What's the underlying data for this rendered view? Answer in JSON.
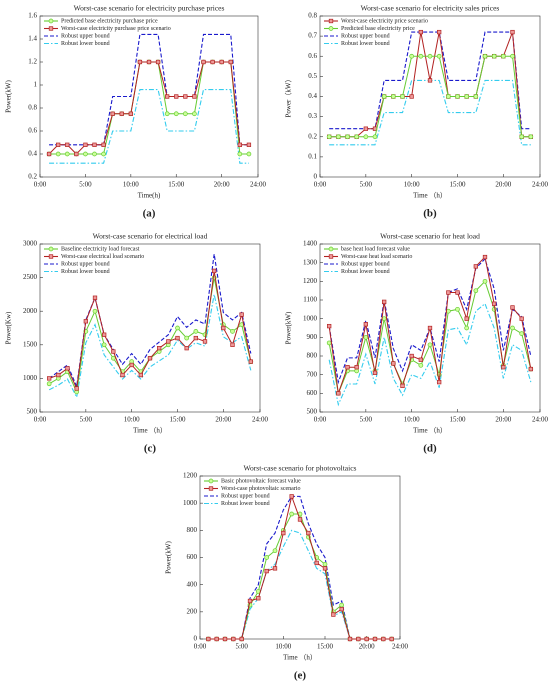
{
  "chart_data": [
    {
      "type": "line",
      "title": "Worst-case scenario for electricity purchase prices",
      "panel_label": "(a)",
      "x_label": "Time(h)",
      "y_label": "Power(kW)",
      "legend": "upper left",
      "grid": false,
      "x": [
        1,
        2,
        3,
        4,
        5,
        6,
        7,
        8,
        9,
        10,
        11,
        12,
        13,
        14,
        15,
        16,
        17,
        18,
        19,
        20,
        21,
        22,
        23
      ],
      "xlim": [
        0,
        24
      ],
      "xticks": [
        {
          "value": 0,
          "label": "0:00"
        },
        {
          "value": 5,
          "label": "5:00"
        },
        {
          "value": 10,
          "label": "10:00"
        },
        {
          "value": 15,
          "label": "15:00"
        },
        {
          "value": 20,
          "label": "20:00"
        },
        {
          "value": 24,
          "label": "24:00"
        }
      ],
      "ylim": [
        0.2,
        1.6
      ],
      "yticks": [
        0.2,
        0.4,
        0.6,
        0.8,
        1,
        1.2,
        1.4,
        1.6
      ],
      "series": [
        {
          "name": "Predicted base electricity purchase price",
          "color": "#66cc33",
          "style": "solid",
          "marker": "circle",
          "values": [
            0.4,
            0.4,
            0.4,
            0.4,
            0.4,
            0.4,
            0.4,
            0.75,
            0.75,
            0.75,
            1.2,
            1.2,
            1.2,
            0.75,
            0.75,
            0.75,
            0.75,
            1.2,
            1.2,
            1.2,
            1.2,
            0.4,
            0.4
          ]
        },
        {
          "name": "Worst-case electricity purchase price scenario",
          "color": "#b22222",
          "style": "solid",
          "marker": "square",
          "values": [
            0.4,
            0.48,
            0.48,
            0.4,
            0.48,
            0.48,
            0.48,
            0.75,
            0.75,
            0.75,
            1.2,
            1.2,
            1.2,
            0.9,
            0.9,
            0.9,
            0.9,
            1.2,
            1.2,
            1.2,
            1.2,
            0.48,
            0.48
          ]
        },
        {
          "name": "Robust upper bound",
          "color": "#1a1acc",
          "style": "dashed",
          "marker": "none",
          "values": [
            0.48,
            0.48,
            0.48,
            0.48,
            0.48,
            0.48,
            0.48,
            0.9,
            0.9,
            0.9,
            1.44,
            1.44,
            1.44,
            0.9,
            0.9,
            0.9,
            0.9,
            1.44,
            1.44,
            1.44,
            1.44,
            0.48,
            0.48
          ]
        },
        {
          "name": "Robust lower bound",
          "color": "#33ccee",
          "style": "dashdot",
          "marker": "none",
          "values": [
            0.32,
            0.32,
            0.32,
            0.32,
            0.32,
            0.32,
            0.32,
            0.6,
            0.6,
            0.6,
            0.96,
            0.96,
            0.96,
            0.6,
            0.6,
            0.6,
            0.6,
            0.96,
            0.96,
            0.96,
            0.96,
            0.32,
            0.32
          ]
        }
      ]
    },
    {
      "type": "line",
      "title": "Worst-case scenario for electricity sales prices",
      "panel_label": "(b)",
      "x_label": "Time （h）",
      "y_label": "Power（kW）",
      "legend": "upper left",
      "grid": false,
      "x": [
        1,
        2,
        3,
        4,
        5,
        6,
        7,
        8,
        9,
        10,
        11,
        12,
        13,
        14,
        15,
        16,
        17,
        18,
        19,
        20,
        21,
        22,
        23
      ],
      "xlim": [
        0,
        24
      ],
      "xticks": [
        {
          "value": 0,
          "label": "0:00"
        },
        {
          "value": 5,
          "label": "5:00"
        },
        {
          "value": 10,
          "label": "10:00"
        },
        {
          "value": 15,
          "label": "15:00"
        },
        {
          "value": 20,
          "label": "20:00"
        },
        {
          "value": 24,
          "label": "24:00"
        }
      ],
      "ylim": [
        0,
        0.8
      ],
      "yticks": [
        0,
        0.1,
        0.2,
        0.3,
        0.4,
        0.5,
        0.6,
        0.7,
        0.8
      ],
      "series": [
        {
          "name": "Worst-case electricity price scenario",
          "color": "#b22222",
          "style": "solid",
          "marker": "square",
          "values": [
            0.2,
            0.2,
            0.2,
            0.2,
            0.24,
            0.24,
            0.4,
            0.4,
            0.4,
            0.4,
            0.72,
            0.48,
            0.72,
            0.4,
            0.4,
            0.4,
            0.4,
            0.6,
            0.6,
            0.6,
            0.72,
            0.2,
            0.2
          ]
        },
        {
          "name": "Predicted base electricity price",
          "color": "#66cc33",
          "style": "solid",
          "marker": "circle",
          "values": [
            0.2,
            0.2,
            0.2,
            0.2,
            0.2,
            0.2,
            0.4,
            0.4,
            0.4,
            0.6,
            0.6,
            0.6,
            0.6,
            0.4,
            0.4,
            0.4,
            0.4,
            0.6,
            0.6,
            0.6,
            0.6,
            0.2,
            0.2
          ]
        },
        {
          "name": "Robust upper bound",
          "color": "#1a1acc",
          "style": "dashed",
          "marker": "none",
          "values": [
            0.24,
            0.24,
            0.24,
            0.24,
            0.24,
            0.24,
            0.48,
            0.48,
            0.48,
            0.72,
            0.72,
            0.72,
            0.72,
            0.48,
            0.48,
            0.48,
            0.48,
            0.72,
            0.72,
            0.72,
            0.72,
            0.24,
            0.24
          ]
        },
        {
          "name": "Robust lower bound",
          "color": "#33ccee",
          "style": "dashdot",
          "marker": "none",
          "values": [
            0.16,
            0.16,
            0.16,
            0.16,
            0.16,
            0.16,
            0.32,
            0.32,
            0.32,
            0.48,
            0.48,
            0.48,
            0.48,
            0.32,
            0.32,
            0.32,
            0.32,
            0.48,
            0.48,
            0.48,
            0.48,
            0.16,
            0.16
          ]
        }
      ]
    },
    {
      "type": "line",
      "title": "Worst-case scenario for electrical load",
      "panel_label": "(c)",
      "x_label": "Time （h）",
      "y_label": "Power(Kw)",
      "legend": "upper left",
      "grid": false,
      "x": [
        1,
        2,
        3,
        4,
        5,
        6,
        7,
        8,
        9,
        10,
        11,
        12,
        13,
        14,
        15,
        16,
        17,
        18,
        19,
        20,
        21,
        22,
        23
      ],
      "xlim": [
        0,
        24
      ],
      "xticks": [
        {
          "value": 0,
          "label": "0:00"
        },
        {
          "value": 5,
          "label": "5:00"
        },
        {
          "value": 10,
          "label": "10:00"
        },
        {
          "value": 15,
          "label": "15:00"
        },
        {
          "value": 20,
          "label": "20:00"
        },
        {
          "value": 24,
          "label": "24:00"
        }
      ],
      "ylim": [
        500,
        3000
      ],
      "yticks": [
        500,
        1000,
        1500,
        2000,
        2500,
        3000
      ],
      "series": [
        {
          "name": "Baseline electricity load forecast",
          "color": "#66cc33",
          "style": "solid",
          "marker": "circle",
          "values": [
            920,
            1000,
            1100,
            800,
            1700,
            2000,
            1500,
            1300,
            1100,
            1250,
            1100,
            1300,
            1400,
            1500,
            1750,
            1600,
            1700,
            1650,
            2500,
            1800,
            1700,
            1800,
            1250
          ]
        },
        {
          "name": "Worst-case electrical load scenario",
          "color": "#b22222",
          "style": "solid",
          "marker": "square",
          "values": [
            1000,
            1050,
            1150,
            850,
            1850,
            2200,
            1650,
            1400,
            1050,
            1200,
            1050,
            1300,
            1450,
            1550,
            1600,
            1450,
            1600,
            1550,
            2600,
            1750,
            1500,
            1950,
            1250
          ]
        },
        {
          "name": "Robust upper bound",
          "color": "#1a1acc",
          "style": "dashed",
          "marker": "none",
          "values": [
            1000,
            1100,
            1200,
            880,
            1870,
            2200,
            1650,
            1430,
            1210,
            1370,
            1210,
            1430,
            1540,
            1650,
            1920,
            1760,
            1870,
            1810,
            2850,
            1980,
            1870,
            1980,
            1370
          ]
        },
        {
          "name": "Robust lower bound",
          "color": "#33ccee",
          "style": "dashdot",
          "marker": "none",
          "values": [
            830,
            900,
            990,
            720,
            1530,
            1800,
            1350,
            1170,
            990,
            1120,
            990,
            1170,
            1260,
            1350,
            1570,
            1440,
            1530,
            1480,
            2250,
            1620,
            1530,
            1620,
            1120
          ]
        }
      ]
    },
    {
      "type": "line",
      "title": "Worst-case scenario for heat load",
      "panel_label": "(d)",
      "x_label": "Time （h）",
      "y_label": "Power(kW)",
      "legend": "upper left",
      "grid": false,
      "x": [
        1,
        2,
        3,
        4,
        5,
        6,
        7,
        8,
        9,
        10,
        11,
        12,
        13,
        14,
        15,
        16,
        17,
        18,
        19,
        20,
        21,
        22,
        23
      ],
      "xlim": [
        0,
        24
      ],
      "xticks": [
        {
          "value": 0,
          "label": "0:00"
        },
        {
          "value": 5,
          "label": "5:00"
        },
        {
          "value": 10,
          "label": "10:00"
        },
        {
          "value": 15,
          "label": "15:00"
        },
        {
          "value": 20,
          "label": "20:00"
        },
        {
          "value": 24,
          "label": "24:00"
        }
      ],
      "ylim": [
        500,
        1400
      ],
      "yticks": [
        500,
        600,
        700,
        800,
        900,
        1000,
        1100,
        1200,
        1300,
        1400
      ],
      "series": [
        {
          "name": "base heat load forecast value",
          "color": "#66cc33",
          "style": "solid",
          "marker": "circle",
          "values": [
            870,
            600,
            720,
            720,
            900,
            720,
            1000,
            760,
            650,
            780,
            750,
            860,
            700,
            1040,
            1050,
            950,
            1150,
            1200,
            1050,
            750,
            950,
            920,
            730
          ]
        },
        {
          "name": "Worst-case heat load scenario",
          "color": "#b22222",
          "style": "solid",
          "marker": "square",
          "values": [
            960,
            600,
            740,
            740,
            970,
            710,
            1090,
            760,
            640,
            800,
            780,
            950,
            660,
            1140,
            1140,
            1000,
            1280,
            1330,
            1080,
            740,
            1060,
            1000,
            730
          ]
        },
        {
          "name": "Robust upper bound",
          "color": "#1a1acc",
          "style": "dashed",
          "marker": "none",
          "values": [
            960,
            660,
            790,
            790,
            990,
            790,
            1100,
            840,
            720,
            860,
            830,
            950,
            770,
            1140,
            1160,
            1050,
            1270,
            1320,
            1160,
            830,
            1050,
            1010,
            800
          ]
        },
        {
          "name": "Robust lower bound",
          "color": "#33ccee",
          "style": "dashdot",
          "marker": "none",
          "values": [
            780,
            540,
            650,
            650,
            810,
            650,
            900,
            680,
            590,
            700,
            680,
            770,
            630,
            940,
            950,
            860,
            1040,
            1080,
            950,
            680,
            860,
            830,
            660
          ]
        }
      ]
    },
    {
      "type": "line",
      "title": "Worst-case scenario for photovoltaics",
      "panel_label": "(e)",
      "x_label": "Time （h）",
      "y_label": "Power(kW)",
      "legend": "upper left",
      "grid": false,
      "x": [
        1,
        2,
        3,
        4,
        5,
        6,
        7,
        8,
        9,
        10,
        11,
        12,
        13,
        14,
        15,
        16,
        17,
        18,
        19,
        20,
        21,
        22,
        23
      ],
      "xlim": [
        0,
        24
      ],
      "xticks": [
        {
          "value": 0,
          "label": "0:00"
        },
        {
          "value": 5,
          "label": "5:00"
        },
        {
          "value": 10,
          "label": "10:00"
        },
        {
          "value": 15,
          "label": "15:00"
        },
        {
          "value": 20,
          "label": "20:00"
        },
        {
          "value": 24,
          "label": "24:00"
        }
      ],
      "ylim": [
        0,
        1200
      ],
      "yticks": [
        0,
        200,
        400,
        600,
        800,
        1000,
        1200
      ],
      "series": [
        {
          "name": "Basic photovoltaic forecast value",
          "color": "#66cc33",
          "style": "solid",
          "marker": "circle",
          "values": [
            0,
            0,
            0,
            0,
            0,
            250,
            350,
            600,
            650,
            800,
            920,
            920,
            750,
            600,
            550,
            200,
            250,
            0,
            0,
            0,
            0,
            0,
            0
          ]
        },
        {
          "name": "Worst-case photovoltaic scenario",
          "color": "#b22222",
          "style": "solid",
          "marker": "square",
          "values": [
            0,
            0,
            0,
            0,
            0,
            280,
            300,
            500,
            520,
            780,
            1050,
            880,
            780,
            560,
            520,
            180,
            220,
            0,
            0,
            0,
            0,
            0,
            0
          ]
        },
        {
          "name": "Robust upper bound",
          "color": "#1a1acc",
          "style": "dashed",
          "marker": "none",
          "values": [
            0,
            0,
            0,
            0,
            0,
            300,
            400,
            700,
            780,
            950,
            1050,
            1050,
            850,
            700,
            600,
            250,
            280,
            0,
            0,
            0,
            0,
            0,
            0
          ]
        },
        {
          "name": "Robust lower bound",
          "color": "#33ccee",
          "style": "dashdot",
          "marker": "none",
          "values": [
            0,
            0,
            0,
            0,
            0,
            220,
            300,
            500,
            550,
            680,
            800,
            780,
            650,
            520,
            480,
            170,
            200,
            0,
            0,
            0,
            0,
            0,
            0
          ]
        }
      ]
    }
  ]
}
